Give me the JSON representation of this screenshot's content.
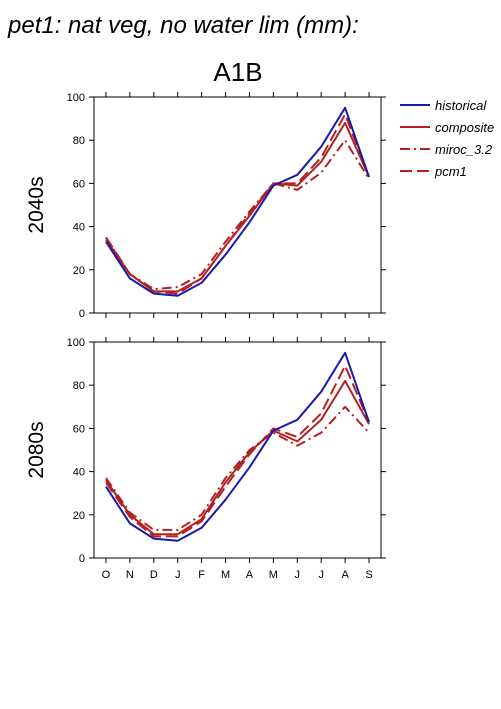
{
  "header": {
    "title": "pet1: nat veg, no water lim (mm):",
    "scenario": "A1B"
  },
  "colors": {
    "historical": "#1a1aaa",
    "composite": "#b22222",
    "miroc_3.2": "#b22222",
    "pcm1": "#b22222"
  },
  "legend": {
    "placement": "right",
    "items": [
      {
        "label": "historical",
        "style": "solid",
        "color": "#1a1aaa"
      },
      {
        "label": "composite",
        "style": "solid",
        "color": "#b22222"
      },
      {
        "label": "miroc_3.2",
        "style": "dash-dot",
        "color": "#b22222"
      },
      {
        "label": "pcm1",
        "style": "long-dash",
        "color": "#b22222"
      }
    ]
  },
  "chart_data": [
    {
      "type": "line",
      "row_label": "2040s",
      "categories": [
        "O",
        "N",
        "D",
        "J",
        "F",
        "M",
        "A",
        "M",
        "J",
        "J",
        "A",
        "S"
      ],
      "ylim": [
        0,
        100
      ],
      "yticks": [
        0,
        20,
        40,
        60,
        80,
        100
      ],
      "series": [
        {
          "name": "historical",
          "values": [
            33,
            16,
            9,
            8,
            14,
            27,
            42,
            59,
            64,
            77,
            95,
            63
          ]
        },
        {
          "name": "composite",
          "values": [
            34,
            18,
            10,
            10,
            16,
            31,
            45,
            60,
            59,
            70,
            88,
            63
          ]
        },
        {
          "name": "miroc_3.2",
          "values": [
            35,
            18,
            11,
            12,
            18,
            33,
            47,
            60,
            57,
            65,
            80,
            62
          ]
        },
        {
          "name": "pcm1",
          "values": [
            35,
            18,
            10,
            9,
            16,
            31,
            46,
            60,
            60,
            72,
            92,
            63
          ]
        }
      ]
    },
    {
      "type": "line",
      "row_label": "2080s",
      "categories": [
        "O",
        "N",
        "D",
        "J",
        "F",
        "M",
        "A",
        "M",
        "J",
        "J",
        "A",
        "S"
      ],
      "ylim": [
        0,
        100
      ],
      "yticks": [
        0,
        20,
        40,
        60,
        80,
        100
      ],
      "series": [
        {
          "name": "historical",
          "values": [
            33,
            16,
            9,
            8,
            14,
            27,
            42,
            59,
            64,
            77,
            95,
            63
          ]
        },
        {
          "name": "composite",
          "values": [
            36,
            20,
            11,
            11,
            18,
            35,
            49,
            59,
            54,
            64,
            82,
            62
          ]
        },
        {
          "name": "miroc_3.2",
          "values": [
            37,
            21,
            13,
            13,
            20,
            37,
            50,
            58,
            52,
            58,
            70,
            58
          ]
        },
        {
          "name": "pcm1",
          "values": [
            35,
            19,
            10,
            10,
            17,
            33,
            48,
            60,
            56,
            67,
            89,
            63
          ]
        }
      ]
    }
  ]
}
